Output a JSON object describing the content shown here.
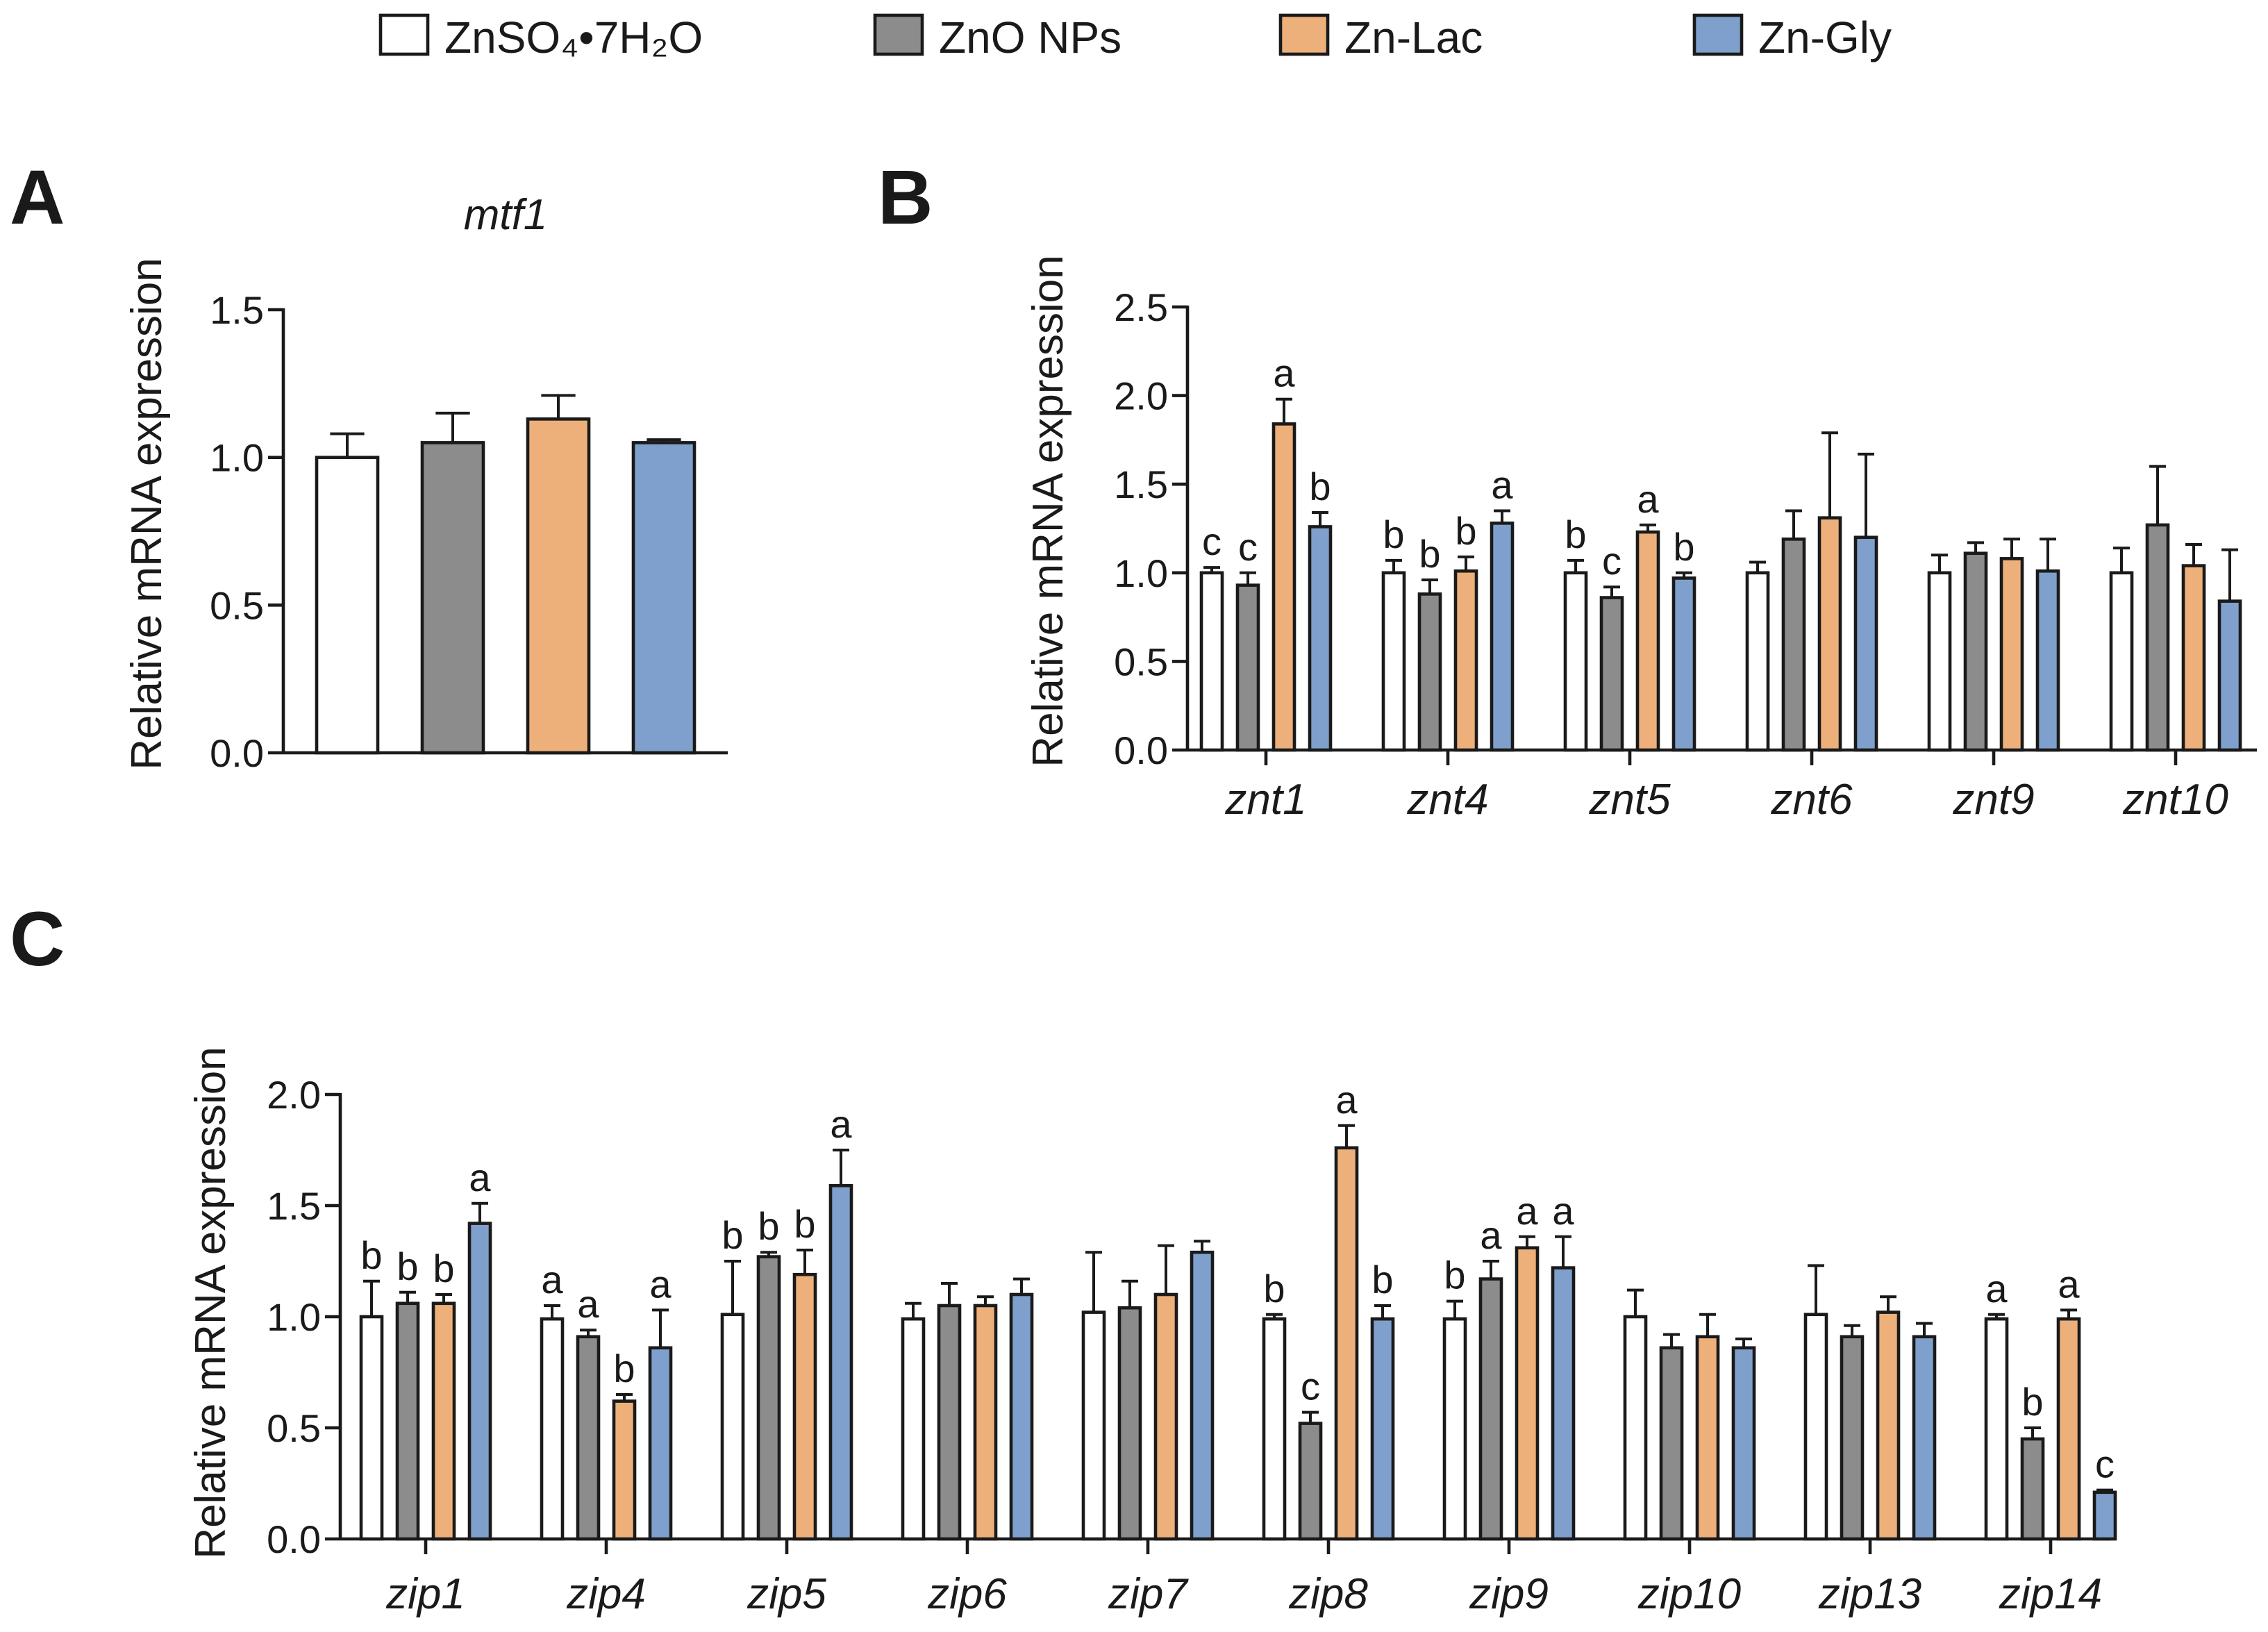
{
  "chart_data": [
    {
      "panel": "A",
      "type": "bar",
      "title": "mtf1",
      "ylabel": "Relative mRNA expression",
      "xlabel": "",
      "ylim": [
        0,
        1.5
      ],
      "yticks": [
        "0.0",
        "0.5",
        "1.0",
        "1.5"
      ],
      "categories": [
        ""
      ],
      "series": [
        {
          "name": "ZnSO₄•7H₂O",
          "values": [
            1.0
          ],
          "errors": [
            0.08
          ],
          "sig": [
            ""
          ]
        },
        {
          "name": "ZnO NPs",
          "values": [
            1.05
          ],
          "errors": [
            0.1
          ],
          "sig": [
            ""
          ]
        },
        {
          "name": "Zn-Lac",
          "values": [
            1.13
          ],
          "errors": [
            0.08
          ],
          "sig": [
            ""
          ]
        },
        {
          "name": "Zn-Gly",
          "values": [
            1.05
          ],
          "errors": [
            0.01
          ],
          "sig": [
            ""
          ]
        }
      ]
    },
    {
      "panel": "B",
      "type": "bar",
      "title": "",
      "ylabel": "Relative mRNA expression",
      "xlabel": "",
      "ylim": [
        0,
        2.5
      ],
      "yticks": [
        "0.0",
        "0.5",
        "1.0",
        "1.5",
        "2.0",
        "2.5"
      ],
      "categories": [
        "znt1",
        "znt4",
        "znt5",
        "znt6",
        "znt9",
        "znt10"
      ],
      "series": [
        {
          "name": "ZnSO₄•7H₂O",
          "values": [
            1.0,
            1.0,
            1.0,
            1.0,
            1.0,
            1.0
          ],
          "errors": [
            0.03,
            0.07,
            0.07,
            0.06,
            0.1,
            0.14
          ],
          "sig": [
            "c",
            "b",
            "b",
            "",
            "",
            ""
          ]
        },
        {
          "name": "ZnO NPs",
          "values": [
            0.93,
            0.88,
            0.86,
            1.19,
            1.11,
            1.27
          ],
          "errors": [
            0.07,
            0.08,
            0.06,
            0.16,
            0.06,
            0.33
          ],
          "sig": [
            "c",
            "b",
            "c",
            "",
            "",
            ""
          ]
        },
        {
          "name": "Zn-Lac",
          "values": [
            1.84,
            1.01,
            1.23,
            1.31,
            1.08,
            1.04
          ],
          "errors": [
            0.14,
            0.08,
            0.04,
            0.48,
            0.11,
            0.12
          ],
          "sig": [
            "a",
            "b",
            "a",
            "",
            "",
            ""
          ]
        },
        {
          "name": "Zn-Gly",
          "values": [
            1.26,
            1.28,
            0.97,
            1.2,
            1.01,
            0.84
          ],
          "errors": [
            0.08,
            0.07,
            0.03,
            0.47,
            0.18,
            0.29
          ],
          "sig": [
            "b",
            "a",
            "b",
            "",
            "",
            ""
          ]
        }
      ]
    },
    {
      "panel": "C",
      "type": "bar",
      "title": "",
      "ylabel": "Relative mRNA expression",
      "xlabel": "",
      "ylim": [
        0,
        2.0
      ],
      "yticks": [
        "0.0",
        "0.5",
        "1.0",
        "1.5",
        "2.0"
      ],
      "categories": [
        "zip1",
        "zip4",
        "zip5",
        "zip6",
        "zip7",
        "zip8",
        "zip9",
        "zip10",
        "zip13",
        "zip14"
      ],
      "series": [
        {
          "name": "ZnSO₄•7H₂O",
          "values": [
            1.0,
            0.99,
            1.01,
            0.99,
            1.02,
            0.99,
            0.99,
            1.0,
            1.01,
            0.99
          ],
          "errors": [
            0.16,
            0.06,
            0.24,
            0.07,
            0.27,
            0.02,
            0.08,
            0.12,
            0.22,
            0.02
          ],
          "sig": [
            "b",
            "a",
            "b",
            "",
            "",
            "b",
            "b",
            "",
            "",
            "a"
          ]
        },
        {
          "name": "ZnO NPs",
          "values": [
            1.06,
            0.91,
            1.27,
            1.05,
            1.04,
            0.52,
            1.17,
            0.86,
            0.91,
            0.45
          ],
          "errors": [
            0.05,
            0.03,
            0.02,
            0.1,
            0.12,
            0.05,
            0.08,
            0.06,
            0.05,
            0.05
          ],
          "sig": [
            "b",
            "a",
            "b",
            "",
            "",
            "c",
            "a",
            "",
            "",
            "b"
          ]
        },
        {
          "name": "Zn-Lac",
          "values": [
            1.06,
            0.62,
            1.19,
            1.05,
            1.1,
            1.76,
            1.31,
            0.91,
            1.02,
            0.99
          ],
          "errors": [
            0.04,
            0.03,
            0.11,
            0.04,
            0.22,
            0.1,
            0.05,
            0.1,
            0.07,
            0.04
          ],
          "sig": [
            "b",
            "b",
            "b",
            "",
            "",
            "a",
            "a",
            "",
            "",
            "a"
          ]
        },
        {
          "name": "Zn-Gly",
          "values": [
            1.42,
            0.86,
            1.59,
            1.1,
            1.29,
            0.99,
            1.22,
            0.86,
            0.91,
            0.21
          ],
          "errors": [
            0.09,
            0.17,
            0.16,
            0.07,
            0.05,
            0.06,
            0.14,
            0.04,
            0.06,
            0.01
          ],
          "sig": [
            "a",
            "a",
            "a",
            "",
            "",
            "b",
            "a",
            "",
            "",
            "c"
          ]
        }
      ]
    }
  ],
  "legend": [
    {
      "name": "ZnSO₄•7H₂O",
      "color": "#ffffff"
    },
    {
      "name": "ZnO NPs",
      "color": "#8c8c8c"
    },
    {
      "name": "Zn-Lac",
      "color": "#eeb07a"
    },
    {
      "name": "Zn-Gly",
      "color": "#7fa0cc"
    }
  ]
}
